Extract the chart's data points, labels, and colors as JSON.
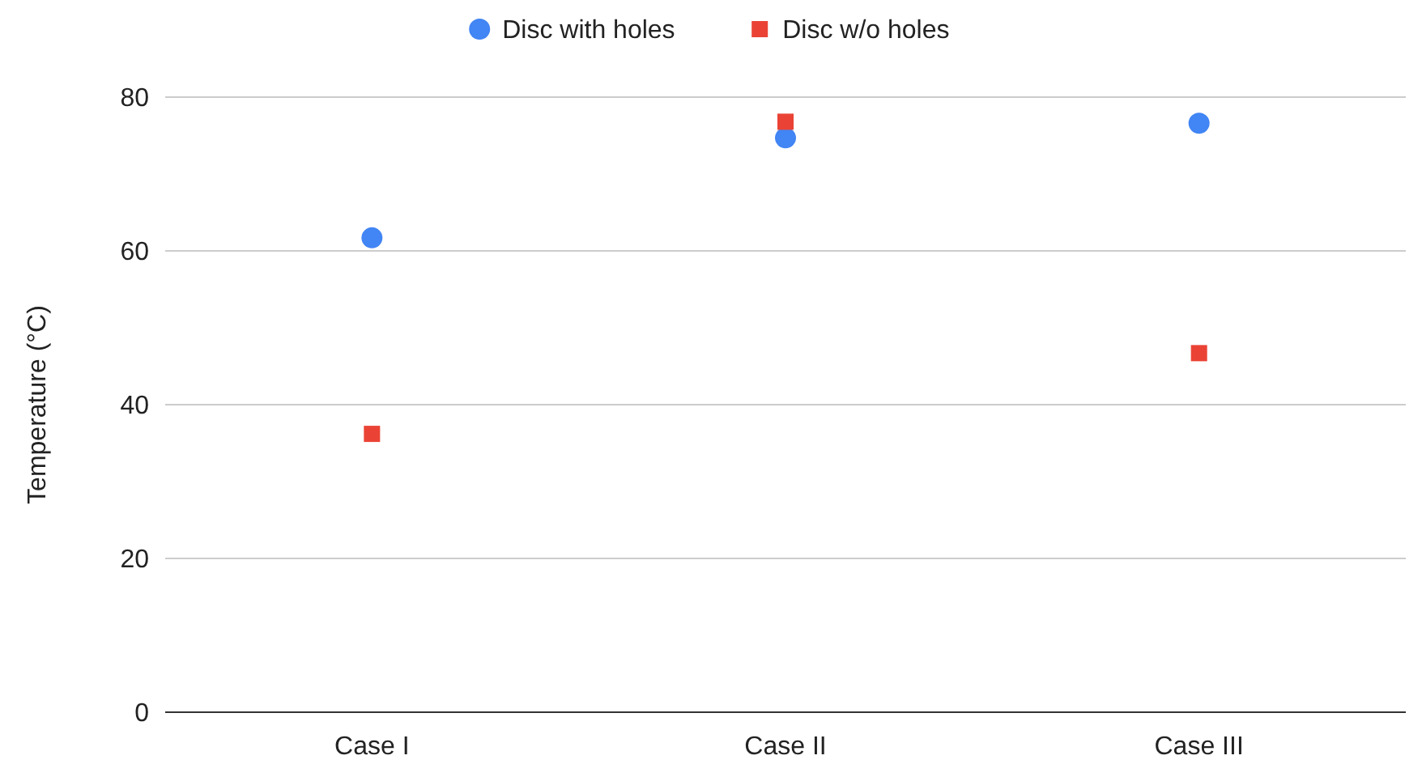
{
  "chart_data": {
    "type": "scatter",
    "ylabel": "Temperature (°C)",
    "categories": [
      "Case I",
      "Case II",
      "Case III"
    ],
    "series": [
      {
        "name": "Disc with holes",
        "color": "#4285f4",
        "marker": "circle",
        "values": [
          61.7,
          74.7,
          76.6
        ]
      },
      {
        "name": "Disc w/o holes",
        "color": "#ea4335",
        "marker": "square",
        "values": [
          36.2,
          76.8,
          46.7
        ]
      }
    ],
    "ylim": [
      0,
      80
    ],
    "yticks": [
      0,
      20,
      40,
      60,
      80
    ],
    "grid": "y",
    "legend": "top"
  }
}
